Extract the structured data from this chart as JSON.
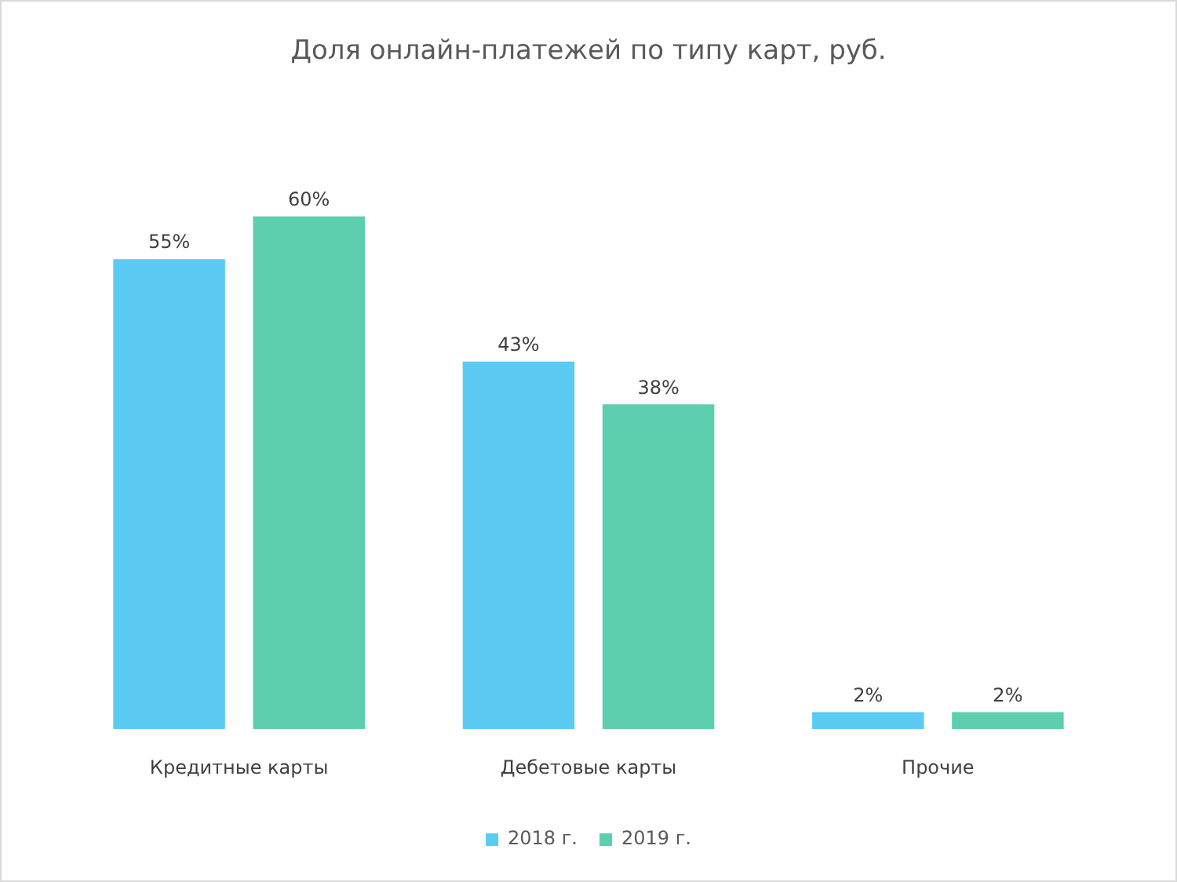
{
  "chart_data": {
    "type": "bar",
    "title": "Доля онлайн-платежей по типу карт, руб.",
    "categories": [
      "Кредитные карты",
      "Дебетовые карты",
      "Прочие"
    ],
    "series": [
      {
        "name": "2018 г.",
        "color": "#5ccbf3",
        "values": [
          55,
          43,
          2
        ],
        "value_labels": [
          "55%",
          "43%",
          "2%"
        ]
      },
      {
        "name": "2019 г.",
        "color": "#5ecfae",
        "values": [
          60,
          38,
          2
        ],
        "value_labels": [
          "60%",
          "38%",
          "2%"
        ]
      }
    ],
    "legend": "bottom",
    "grid": false,
    "tick_labels": "x"
  }
}
